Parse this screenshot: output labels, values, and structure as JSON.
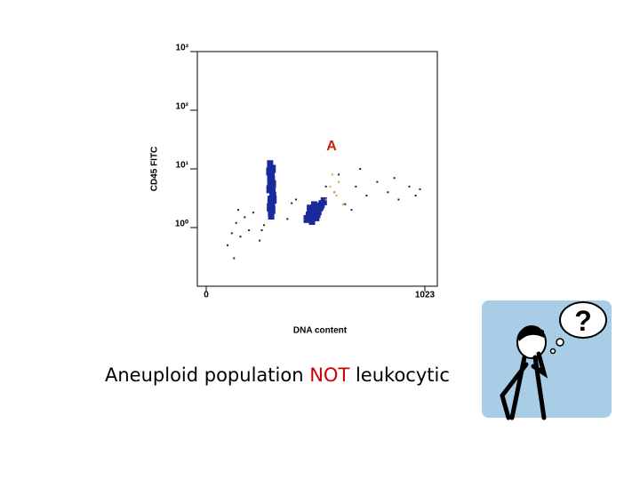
{
  "chart_data": {
    "type": "scatter",
    "y_label": "CD45 FITC",
    "x_label": "DNA content",
    "annotation": "A",
    "xlim": [
      0,
      1023
    ],
    "xticks": [
      0,
      1023
    ],
    "ylim": [
      0.1,
      1000
    ],
    "y_log": true,
    "yticks": [
      {
        "value": 1,
        "label": "10⁰"
      },
      {
        "value": 10,
        "label": "10¹"
      },
      {
        "value": 100,
        "label": "10²"
      },
      {
        "value": 1000,
        "label": "10³"
      }
    ],
    "series": [
      {
        "color": "#1a2a9c",
        "x": [
          295,
          300,
          305,
          310,
          315,
          298,
          303,
          308,
          313,
          300,
          306,
          311,
          296,
          302,
          309,
          304,
          299,
          307,
          312,
          301
        ],
        "values": [
          9,
          7,
          5,
          4,
          3,
          2.2,
          1.8,
          2.5,
          3.5,
          6,
          8,
          10,
          4.5,
          3,
          2,
          1.6,
          12,
          6.5,
          5.5,
          2.8
        ]
      },
      {
        "color": "#1a2a9c",
        "x": [
          470,
          480,
          490,
          500,
          510,
          520,
          530,
          540,
          550,
          495,
          515,
          505,
          525,
          485,
          535
        ],
        "values": [
          1.4,
          1.6,
          1.5,
          1.8,
          2,
          1.7,
          2.2,
          2.5,
          2.8,
          1.3,
          1.5,
          2.4,
          1.9,
          2.1,
          2.3
        ]
      },
      {
        "color": "#222222",
        "x": [
          100,
          120,
          140,
          160,
          180,
          200,
          250,
          270,
          380,
          400,
          420,
          600,
          650,
          700,
          750,
          800,
          850,
          900,
          950,
          1000,
          130,
          150,
          220,
          260,
          620,
          680,
          720,
          880,
          980,
          560
        ],
        "values": [
          0.5,
          0.8,
          1.2,
          0.7,
          1.5,
          0.9,
          0.6,
          1.1,
          1.4,
          2.6,
          3,
          4,
          2.5,
          5,
          3.5,
          6,
          4,
          3,
          5,
          4.5,
          0.3,
          2,
          1.8,
          0.9,
          8,
          2,
          10,
          7,
          3.5,
          5
        ]
      },
      {
        "color": "#d9a030",
        "x": [
          560,
          580,
          600,
          620,
          640,
          590,
          610
        ],
        "values": [
          3,
          5,
          4,
          6,
          2.5,
          8,
          3.5
        ]
      }
    ]
  },
  "caption": {
    "parts": [
      "Aneuploid population",
      "NOT",
      "leukocytic"
    ]
  }
}
